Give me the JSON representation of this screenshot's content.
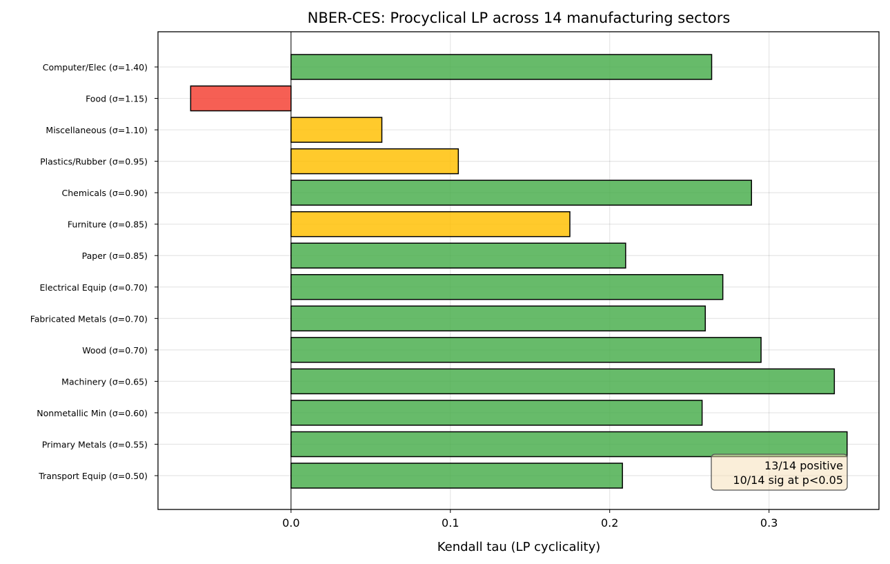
{
  "chart_data": {
    "type": "bar",
    "orientation": "horizontal",
    "title": "NBER-CES: Procyclical LP across 14 manufacturing sectors",
    "xlabel": "Kendall tau (LP cyclicality)",
    "ylabel": "",
    "xlim": [
      -0.0835,
      0.369
    ],
    "xticks": [
      0.0,
      0.1,
      0.2,
      0.3
    ],
    "xtick_labels": [
      "0.0",
      "0.1",
      "0.2",
      "0.3"
    ],
    "grid": true,
    "categories": [
      "Computer/Elec (σ=1.40)",
      "Food (σ=1.15)",
      "Miscellaneous (σ=1.10)",
      "Plastics/Rubber (σ=0.95)",
      "Chemicals (σ=0.90)",
      "Furniture (σ=0.85)",
      "Paper (σ=0.85)",
      "Electrical Equip (σ=0.70)",
      "Fabricated Metals (σ=0.70)",
      "Wood (σ=0.70)",
      "Machinery (σ=0.65)",
      "Nonmetallic Min (σ=0.60)",
      "Primary Metals (σ=0.55)",
      "Transport Equip (σ=0.50)"
    ],
    "values": [
      0.264,
      -0.063,
      0.057,
      0.105,
      0.289,
      0.175,
      0.21,
      0.271,
      0.26,
      0.295,
      0.341,
      0.258,
      0.349,
      0.208
    ],
    "bar_colors": [
      "#4caf50",
      "#f44336",
      "#ffc107",
      "#ffc107",
      "#4caf50",
      "#ffc107",
      "#4caf50",
      "#4caf50",
      "#4caf50",
      "#4caf50",
      "#4caf50",
      "#4caf50",
      "#4caf50",
      "#4caf50"
    ],
    "annotation": [
      "13/14 positive",
      "10/14 sig at p<0.05"
    ],
    "annotation_box_color": "#f5deb3"
  }
}
